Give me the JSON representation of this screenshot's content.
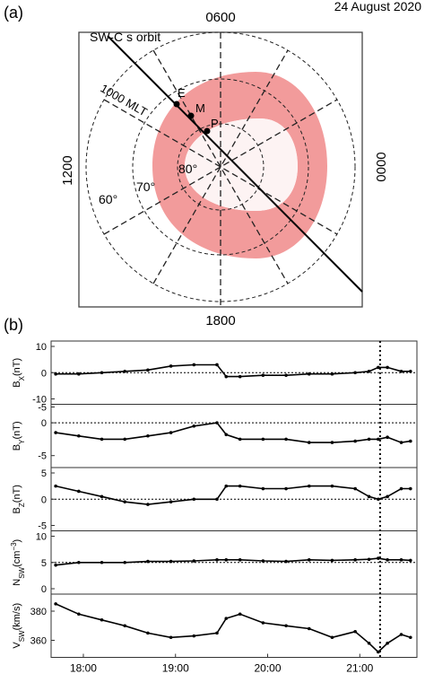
{
  "header": {
    "panel_a_label": "(a)",
    "panel_b_label": "(b)",
    "date": "24 August 2020"
  },
  "polar_panel": {
    "mlt_top": "0600",
    "mlt_bottom": "1800",
    "mlt_left": "1200",
    "mlt_right": "0000",
    "orbit_label": "SW-C s orbit",
    "noon_label": "1000 MLT",
    "lat_labels": [
      "60°",
      "70°",
      "80°"
    ],
    "point_labels": [
      "E",
      "M",
      "P"
    ],
    "oval_color": "#f08a8a",
    "oval_inner_color": "#fdf3f3"
  },
  "chart_data": {
    "type": "line",
    "x_tick_labels": [
      "18:00",
      "19:00",
      "20:00",
      "21:00"
    ],
    "x_hours": [
      17.7,
      17.95,
      18.2,
      18.45,
      18.7,
      18.95,
      19.2,
      19.45,
      19.55,
      19.7,
      19.95,
      20.2,
      20.45,
      20.7,
      20.95,
      21.1,
      21.2,
      21.3,
      21.45,
      21.55
    ],
    "event_marker_hour": 21.22,
    "panels": [
      {
        "ylabel": "B_X(nT)",
        "yticks": [
          "10",
          "0",
          "-10"
        ],
        "ylim": [
          -10,
          10
        ],
        "baseline": 0,
        "values": [
          -0.5,
          -0.5,
          0,
          0.5,
          1,
          2.5,
          3,
          3,
          -1.5,
          -1.5,
          -1,
          -1,
          -0.5,
          -0.5,
          0,
          0.5,
          2,
          2,
          0.5,
          0.5
        ]
      },
      {
        "ylabel": "B_Y(nT)",
        "yticks": [
          "-5",
          "0",
          "-5"
        ],
        "ylim": [
          -6,
          2
        ],
        "baseline": 0,
        "values": [
          -1.5,
          -2,
          -2.5,
          -2.5,
          -2,
          -1.5,
          -0.5,
          0,
          -1.8,
          -2.5,
          -2.5,
          -2.5,
          -3,
          -3,
          -2.8,
          -2.5,
          -2.5,
          -2.2,
          -3,
          -2.8
        ]
      },
      {
        "ylabel": "B_Z(nT)",
        "yticks": [
          "5",
          "0",
          "-5"
        ],
        "ylim": [
          -5,
          5
        ],
        "baseline": 0,
        "values": [
          2.5,
          1.5,
          0.5,
          -0.5,
          -1,
          -0.5,
          0,
          0,
          2.5,
          2.5,
          2,
          2,
          2.5,
          2.5,
          2,
          0.5,
          0,
          0.5,
          2,
          2
        ]
      },
      {
        "ylabel": "N_SW(cm^-3)",
        "yticks": [
          "10",
          "5",
          "0"
        ],
        "ylim": [
          0,
          10
        ],
        "baseline": 5,
        "values": [
          4.5,
          5,
          5,
          5,
          5.2,
          5.2,
          5.3,
          5.5,
          5.5,
          5.5,
          5.3,
          5.2,
          5.5,
          5.4,
          5.5,
          5.6,
          5.8,
          5.5,
          5.5,
          5.4
        ]
      },
      {
        "ylabel": "V_SW(km/s)",
        "yticks": [
          "380",
          "360"
        ],
        "ylim": [
          352,
          388
        ],
        "baseline": null,
        "values": [
          385,
          378,
          374,
          370,
          365,
          362,
          363,
          365,
          375,
          378,
          372,
          370,
          368,
          362,
          366,
          358,
          352,
          358,
          364,
          362
        ]
      }
    ]
  }
}
